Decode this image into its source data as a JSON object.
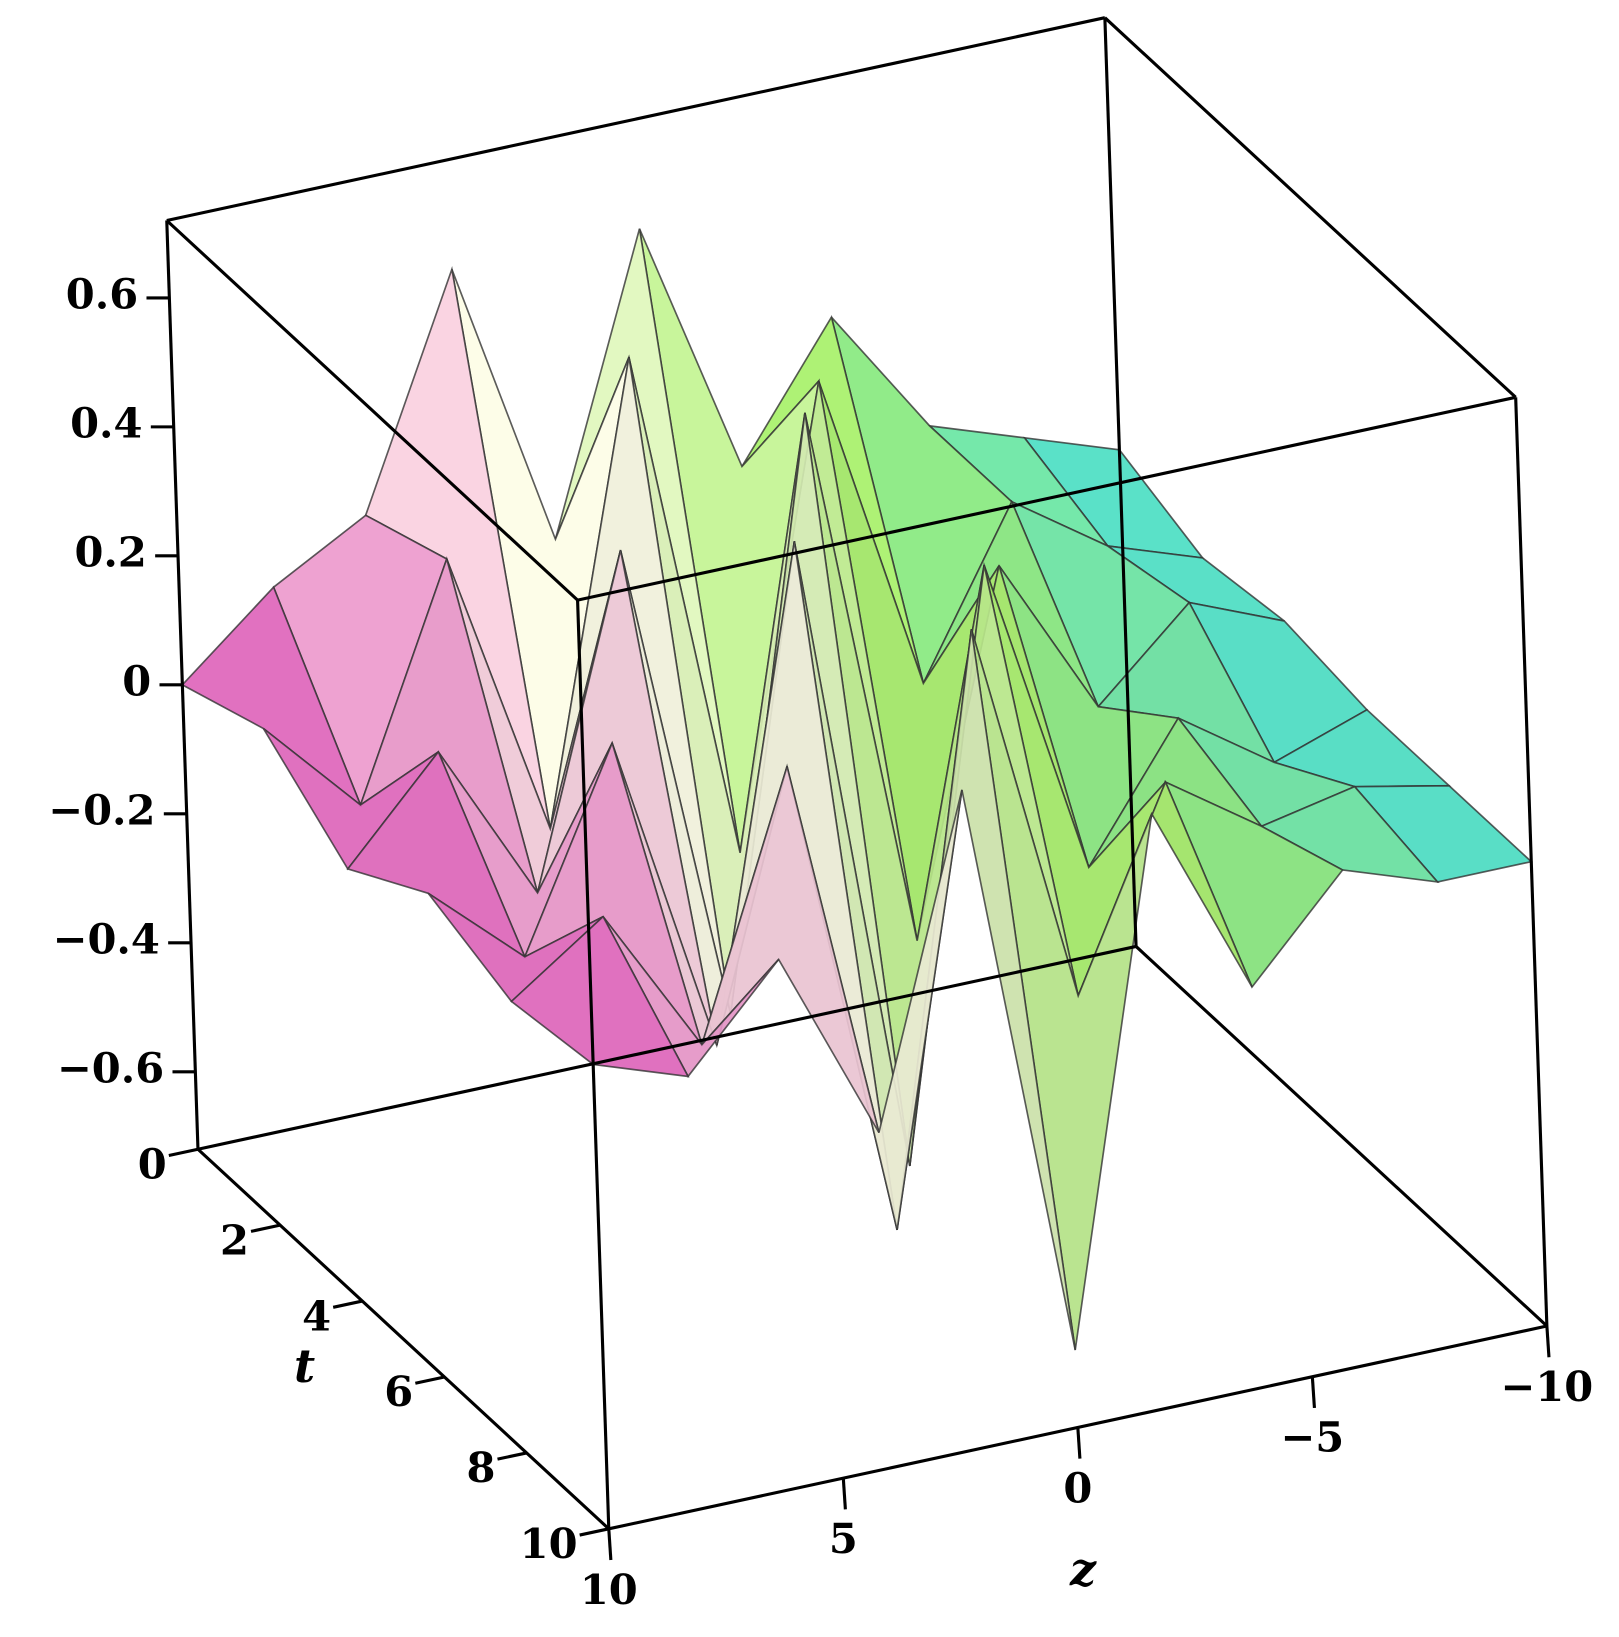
{
  "chart_data": {
    "type": "surface",
    "x_label": "z",
    "y_label": "t",
    "x": [
      10,
      8,
      6,
      4,
      2,
      0,
      -2,
      -4,
      -6,
      -8,
      -10
    ],
    "y": [
      0,
      2,
      4,
      6,
      8,
      10
    ],
    "values": [
      [
        0.0,
        0.12,
        0.2,
        0.55,
        0.1,
        0.55,
        0.15,
        0.35,
        0.15,
        0.1,
        0.05
      ],
      [
        0.05,
        -0.1,
        0.25,
        -0.2,
        0.5,
        -0.3,
        0.4,
        -0.1,
        0.15,
        0.05,
        0.0
      ],
      [
        -0.05,
        0.1,
        -0.15,
        0.35,
        -0.4,
        0.5,
        -0.35,
        0.2,
        -0.05,
        0.08,
        0.02
      ],
      [
        0.03,
        -0.1,
        0.2,
        -0.3,
        0.45,
        -0.55,
        0.35,
        -0.15,
        0.05,
        -0.05,
        0.0
      ],
      [
        -0.02,
        0.08,
        -0.15,
        0.25,
        -0.5,
        0.4,
        -0.2,
        0.1,
        0.0,
        0.03,
        0.0
      ],
      [
        0.0,
        -0.05,
        0.1,
        -0.2,
        0.3,
        -0.6,
        0.2,
        -0.1,
        0.05,
        0.0,
        0.0
      ]
    ],
    "xlim": [
      10,
      -10
    ],
    "ylim": [
      0,
      10
    ],
    "zlim": [
      -0.72,
      0.72
    ],
    "xticks": [
      10,
      5,
      0,
      {
        "value": -5,
        "label": "−5"
      },
      {
        "value": -10,
        "label": "−10"
      }
    ],
    "yticks": [
      0,
      2,
      4,
      6,
      8,
      10
    ],
    "zticks": [
      {
        "value": -0.6,
        "label": "−0.6"
      },
      {
        "value": -0.4,
        "label": "−0.4"
      },
      {
        "value": -0.2,
        "label": "−0.2"
      },
      0,
      0.2,
      0.4,
      0.6
    ],
    "colormap": [
      "#e050b8",
      "#f6f2e2",
      "#9ee860",
      "#40e0d8"
    ],
    "mesh_color": "#333333"
  }
}
